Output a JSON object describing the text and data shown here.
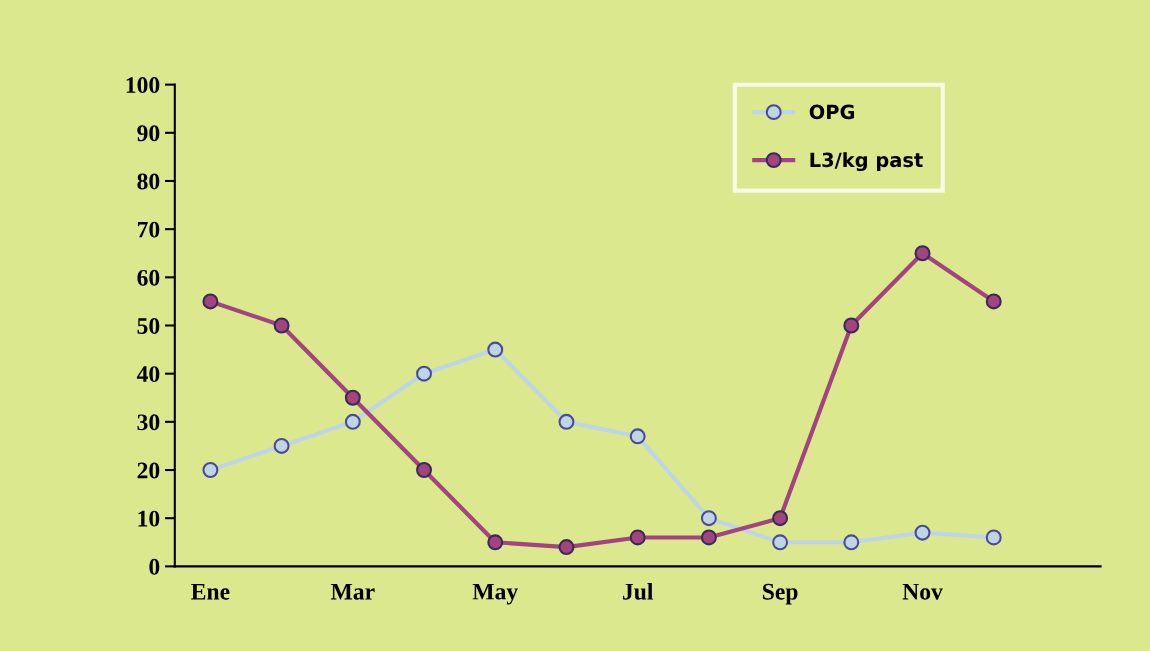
{
  "chart_data": {
    "type": "line",
    "categories": [
      "Ene",
      null,
      "Mar",
      null,
      "May",
      null,
      "Jul",
      null,
      "Sep",
      null,
      "Nov",
      null
    ],
    "ylim": [
      0,
      100
    ],
    "yticks": [
      0,
      10,
      20,
      30,
      40,
      50,
      60,
      70,
      80,
      90,
      100
    ],
    "series": [
      {
        "name": "OPG",
        "color": "#bcd6e6",
        "values": [
          20,
          25,
          30,
          40,
          45,
          30,
          27,
          10,
          5,
          5,
          7,
          6
        ]
      },
      {
        "name": "L3/kg past",
        "color": "#a3437f",
        "values": [
          55,
          50,
          35,
          20,
          5,
          4,
          6,
          6,
          10,
          50,
          65,
          55
        ]
      }
    ],
    "marker": "circle",
    "line_style": "solid",
    "grid": false,
    "legend": "top right"
  }
}
